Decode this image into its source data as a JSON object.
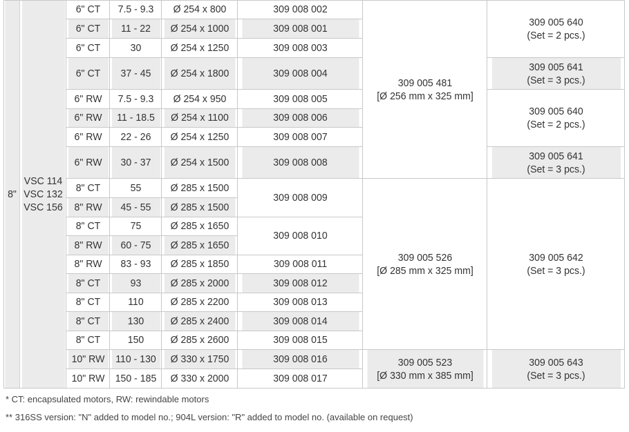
{
  "size": "8\"",
  "housing_models": "VSC 114\nVSC 132\nVSC 156",
  "rows": [
    {
      "motor": "6\" CT",
      "kw": "7.5 - 9.3",
      "dim": "Ø 254 x 800",
      "art": "309 008 002"
    },
    {
      "motor": "6\" CT",
      "kw": "11 - 22",
      "dim": "Ø 254 x 1000",
      "art": "309 008 001"
    },
    {
      "motor": "6\" CT",
      "kw": "30",
      "dim": "Ø 254 x 1250",
      "art": "309 008 003"
    },
    {
      "motor": "6\" CT",
      "kw": "37 - 45",
      "dim": "Ø 254 x 1800",
      "art": "309 008 004"
    },
    {
      "motor": "6\" RW",
      "kw": "7.5 - 9.3",
      "dim": "Ø 254 x 950",
      "art": "309 008 005"
    },
    {
      "motor": "6\" RW",
      "kw": "11 - 18.5",
      "dim": "Ø 254 x 1100",
      "art": "309 008 006"
    },
    {
      "motor": "6\" RW",
      "kw": "22 - 26",
      "dim": "Ø 254 x 1250",
      "art": "309 008 007"
    },
    {
      "motor": "6\" RW",
      "kw": "30 - 37",
      "dim": "Ø 254 x 1500",
      "art": "309 008 008"
    },
    {
      "motor": "8\" CT",
      "kw": "55",
      "dim": "Ø 285 x 1500",
      "art": "309 008 009"
    },
    {
      "motor": "8\" RW",
      "kw": "45 - 55",
      "dim": "Ø 285 x 1500"
    },
    {
      "motor": "8\" CT",
      "kw": "75",
      "dim": "Ø 285 x 1650",
      "art": "309 008 010"
    },
    {
      "motor": "8\" RW",
      "kw": "60 - 75",
      "dim": "Ø 285 x 1650"
    },
    {
      "motor": "8\" RW",
      "kw": "83 - 93",
      "dim": "Ø 285 x 1850",
      "art": "309 008 011"
    },
    {
      "motor": "8\" CT",
      "kw": "93",
      "dim": "Ø 285 x 2000",
      "art": "309 008 012"
    },
    {
      "motor": "8\" CT",
      "kw": "110",
      "dim": "Ø 285 x 2200",
      "art": "309 008 013"
    },
    {
      "motor": "8\" CT",
      "kw": "130",
      "dim": "Ø 285 x 2400",
      "art": "309 008 014"
    },
    {
      "motor": "8\" CT",
      "kw": "150",
      "dim": "Ø 285 x 2600",
      "art": "309 008 015"
    },
    {
      "motor": "10\" RW",
      "kw": "110 - 130",
      "dim": "Ø 330 x 1750",
      "art": "309 008 016"
    },
    {
      "motor": "10\" RW",
      "kw": "150 - 185",
      "dim": "Ø 330 x 2000",
      "art": "309 008 017"
    }
  ],
  "sleeves": {
    "s481": "309 005 481\n[Ø 256 mm x 325 mm]",
    "s526": "309 005 526\n[Ø 285 mm x 325 mm]",
    "s523": "309 005 523\n[Ø 330 mm x 385 mm]"
  },
  "sets": {
    "a": "309 005 640\n(Set = 2 pcs.)",
    "b": "309 005 641\n(Set = 3 pcs.)",
    "c": "309 005 640\n(Set = 2 pcs.)",
    "d": "309 005 641\n(Set = 3 pcs.)",
    "e": "309 005 642\n(Set = 3 pcs.)",
    "f": "309 005 643\n(Set = 3 pcs.)"
  },
  "footnotes": {
    "note1": "* CT: encapsulated motors, RW: rewindable motors",
    "note2": "** 316SS version: \"N\" added to model no.; 904L version: \"R\" added to model no. (available on request)"
  }
}
